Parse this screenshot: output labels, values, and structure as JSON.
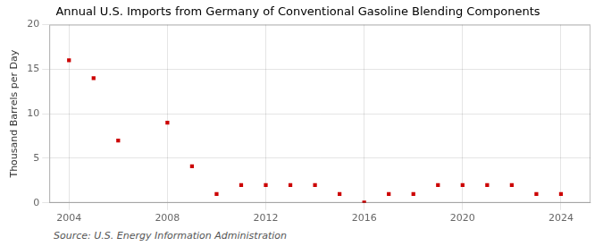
{
  "chart_data": {
    "type": "scatter",
    "title": "Annual U.S. Imports from Germany of Conventional Gasoline Blending Components",
    "ylabel": "Thousand Barrels per Day",
    "annotations": [
      "Source: U.S. Energy Information Administration"
    ],
    "x": [
      2004,
      2005,
      2006,
      2008,
      2009,
      2010,
      2011,
      2012,
      2013,
      2014,
      2015,
      2016,
      2017,
      2018,
      2019,
      2020,
      2021,
      2022,
      2023,
      2024
    ],
    "values": [
      16.0,
      14.0,
      7.0,
      9.0,
      4.1,
      1.0,
      2.0,
      2.0,
      2.0,
      2.0,
      1.0,
      0.05,
      1.0,
      1.0,
      2.0,
      2.0,
      2.0,
      2.0,
      1.0,
      1.0
    ],
    "color": "#cc0000",
    "marker": "square",
    "xlim": [
      2003.2,
      2025.2
    ],
    "xticks": [
      2004,
      2008,
      2012,
      2016,
      2020,
      2024
    ],
    "ylim": [
      0,
      20
    ],
    "yticks": [
      0,
      5,
      10,
      15,
      20
    ],
    "grid": true
  }
}
